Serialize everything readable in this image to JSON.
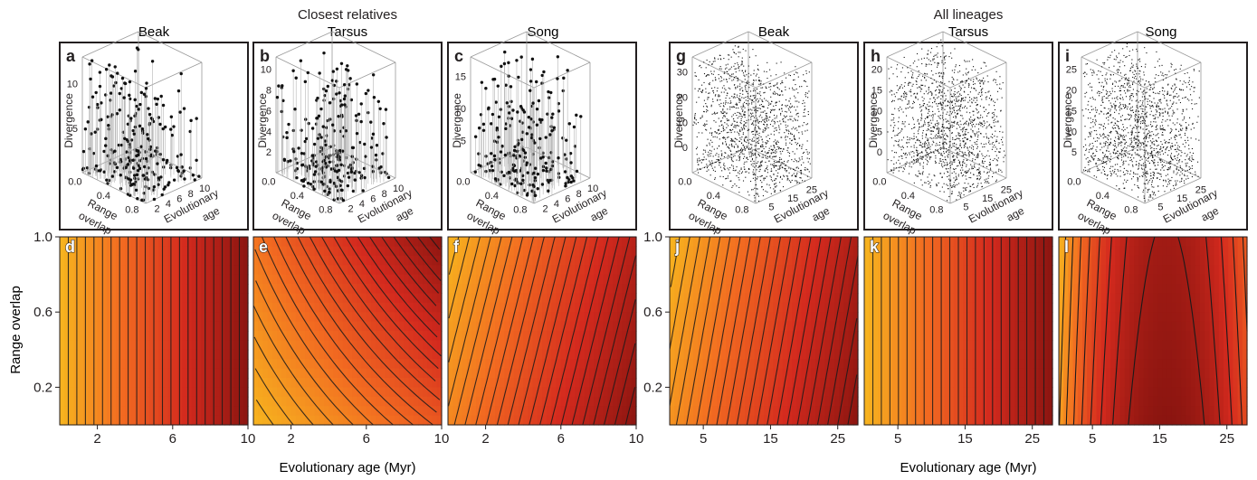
{
  "groups": [
    {
      "title": "Closest relatives",
      "xlabel": "Evolutionary age (Myr)"
    },
    {
      "title": "All lineages",
      "xlabel": "Evolutionary age (Myr)"
    }
  ],
  "y_axis_label": "Range overlap",
  "columns": [
    "Beak",
    "Tarsus",
    "Song",
    "Beak",
    "Tarsus",
    "Song"
  ],
  "scatter_axis_labels": {
    "divergence": "Divergence",
    "range": [
      "Range",
      "overlap"
    ],
    "age": [
      "Evolutionary",
      "age"
    ]
  },
  "colors": {
    "low": "#f7b51f",
    "mid": "#f26a21",
    "high": "#d42a1e",
    "max": "#8b1510",
    "contour": "#1a1a1a",
    "panel_border": "#231f20",
    "scatter_point": "#111111"
  },
  "chart_data": [
    {
      "panel": "a",
      "type": "scatter",
      "title": "Beak",
      "group": "Closest relatives",
      "dims": 3,
      "axes": {
        "z": "Divergence",
        "y": "Range overlap",
        "x": "Evolutionary age"
      },
      "z_ticks": [
        "5",
        "10"
      ],
      "y_ticks": [
        "0.0",
        "0.4",
        "0.8"
      ],
      "x_ticks": [
        "2",
        "4",
        "6",
        "8",
        "10"
      ],
      "n_points": 260
    },
    {
      "panel": "b",
      "type": "scatter",
      "title": "Tarsus",
      "group": "Closest relatives",
      "dims": 3,
      "axes": {
        "z": "Divergence",
        "y": "Range overlap",
        "x": "Evolutionary age"
      },
      "z_ticks": [
        "2",
        "4",
        "6",
        "8",
        "10"
      ],
      "y_ticks": [
        "0.0",
        "0.4",
        "0.8"
      ],
      "x_ticks": [
        "2",
        "4",
        "6",
        "8",
        "10"
      ],
      "n_points": 260
    },
    {
      "panel": "c",
      "type": "scatter",
      "title": "Song",
      "group": "Closest relatives",
      "dims": 3,
      "axes": {
        "z": "Divergence",
        "y": "Range overlap",
        "x": "Evolutionary age"
      },
      "z_ticks": [
        "5",
        "10",
        "15"
      ],
      "y_ticks": [
        "0.0",
        "0.4",
        "0.8"
      ],
      "x_ticks": [
        "2",
        "4",
        "6",
        "8",
        "10"
      ],
      "n_points": 240
    },
    {
      "panel": "g",
      "type": "scatter",
      "title": "Beak",
      "group": "All lineages",
      "dims": 3,
      "axes": {
        "z": "Divergence",
        "y": "Range overlap",
        "x": "Evolutionary age"
      },
      "z_ticks": [
        "0",
        "10",
        "20",
        "30"
      ],
      "y_ticks": [
        "0.0",
        "0.4",
        "0.8"
      ],
      "x_ticks": [
        "5",
        "15",
        "25"
      ],
      "n_points": 1500
    },
    {
      "panel": "h",
      "type": "scatter",
      "title": "Tarsus",
      "group": "All lineages",
      "dims": 3,
      "axes": {
        "z": "Divergence",
        "y": "Range overlap",
        "x": "Evolutionary age"
      },
      "z_ticks": [
        "0",
        "5",
        "10",
        "15",
        "20"
      ],
      "y_ticks": [
        "0.0",
        "0.4",
        "0.8"
      ],
      "x_ticks": [
        "5",
        "15",
        "25"
      ],
      "n_points": 1500
    },
    {
      "panel": "i",
      "type": "scatter",
      "title": "Song",
      "group": "All lineages",
      "dims": 3,
      "axes": {
        "z": "Divergence",
        "y": "Range overlap",
        "x": "Evolutionary age"
      },
      "z_ticks": [
        "5",
        "10",
        "15",
        "20",
        "25"
      ],
      "y_ticks": [
        "0.0",
        "0.4",
        "0.8"
      ],
      "x_ticks": [
        "5",
        "15",
        "25"
      ],
      "n_points": 1500
    },
    {
      "panel": "d",
      "type": "heatmap",
      "title": "Beak",
      "group": "Closest relatives",
      "xlim": [
        0,
        10
      ],
      "ylim": [
        0,
        1
      ],
      "x_ticks": [
        2,
        6,
        10
      ],
      "y_ticks": [
        0.2,
        0.6,
        1.0
      ],
      "surface": "a*x + b*y + c*x*y",
      "coef": {
        "a": 0.6,
        "b": 0.0,
        "c": 0.0
      },
      "contour_step": 0.2
    },
    {
      "panel": "e",
      "type": "heatmap",
      "title": "Tarsus",
      "group": "Closest relatives",
      "xlim": [
        0,
        10
      ],
      "ylim": [
        0,
        1
      ],
      "x_ticks": [
        2,
        6,
        10
      ],
      "y_ticks": [
        0.2,
        0.6,
        1.0
      ],
      "surface": "a*x + b*y + c*x*y",
      "coef": {
        "a": 0.45,
        "b": 3.0,
        "c": 0.3
      },
      "contour_step": 0.2
    },
    {
      "panel": "f",
      "type": "heatmap",
      "title": "Song",
      "group": "Closest relatives",
      "xlim": [
        0,
        10
      ],
      "ylim": [
        0,
        1
      ],
      "x_ticks": [
        2,
        6,
        10
      ],
      "y_ticks": [
        0.2,
        0.6,
        1.0
      ],
      "surface": "a*x + b*y + c*x*y",
      "coef": {
        "a": 1.0,
        "b": -2.5,
        "c": 0.0
      },
      "contour_step": 0.4
    },
    {
      "panel": "j",
      "type": "heatmap",
      "title": "Beak",
      "group": "All lineages",
      "xlim": [
        0,
        28
      ],
      "ylim": [
        0,
        1
      ],
      "x_ticks": [
        5,
        15,
        25
      ],
      "y_ticks": [
        0.2,
        0.6,
        1.0
      ],
      "surface": "a*x + b*y + c*x*y",
      "coef": {
        "a": 0.3,
        "b": -1.5,
        "c": 0.0
      },
      "contour_step": 0.5
    },
    {
      "panel": "k",
      "type": "heatmap",
      "title": "Tarsus",
      "group": "All lineages",
      "xlim": [
        0,
        28
      ],
      "ylim": [
        0,
        1
      ],
      "x_ticks": [
        5,
        15,
        25
      ],
      "y_ticks": [
        0.2,
        0.6,
        1.0
      ],
      "surface": "a*x + b*y + c*x*y",
      "coef": {
        "a": 0.35,
        "b": 0.0,
        "c": 0.0
      },
      "contour_step": 0.5
    },
    {
      "panel": "l",
      "type": "heatmap",
      "title": "Song",
      "group": "All lineages",
      "xlim": [
        0,
        28
      ],
      "ylim": [
        0,
        1
      ],
      "x_ticks": [
        5,
        15,
        25
      ],
      "y_ticks": [
        0.2,
        0.6,
        1.0
      ],
      "surface": "peak at age 16 Myr, highest at low range overlap",
      "peak_x": 16,
      "contour_step": 0.6
    }
  ]
}
